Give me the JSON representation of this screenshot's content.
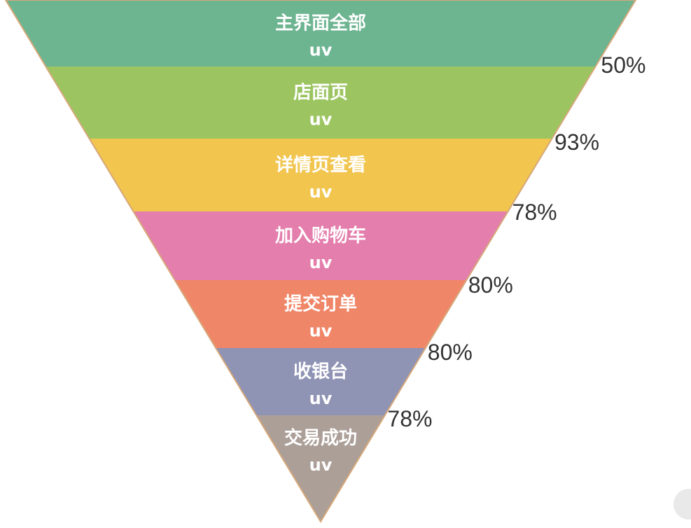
{
  "funnel": {
    "stages": [
      {
        "name": "主界面全部",
        "unit": "uv",
        "color": "#6db491"
      },
      {
        "name": "店面页",
        "unit": "uv",
        "color": "#9cc562"
      },
      {
        "name": "详情页查看",
        "unit": "uv",
        "color": "#f1c54e"
      },
      {
        "name": "加入购物车",
        "unit": "uv",
        "color": "#e47eac"
      },
      {
        "name": "提交订单",
        "unit": "uv",
        "color": "#f08668"
      },
      {
        "name": "收银台",
        "unit": "uv",
        "color": "#8f93b4"
      },
      {
        "name": "交易成功",
        "unit": "uv",
        "color": "#ac9f98"
      }
    ],
    "conversion_rates": [
      "50%",
      "93%",
      "78%",
      "80%",
      "80%",
      "78%"
    ],
    "outline_color": "#d6a87a"
  }
}
